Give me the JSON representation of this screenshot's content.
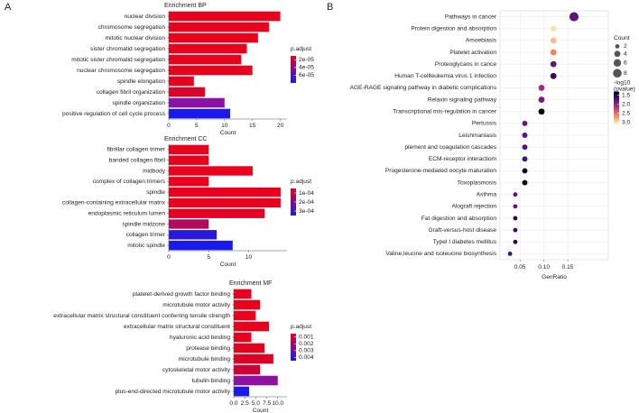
{
  "panels": [
    "A",
    "B"
  ],
  "chart_data": [
    {
      "type": "bar",
      "title": "Enrichment BP",
      "categories": [
        "nuclear division",
        "chromosome segregation",
        "mitotic nuclear division",
        "sister chromatid segregation",
        "mitotic sister chromatid segregation",
        "nuclear chromosome segregation",
        "spindle elongation",
        "collagen fibril organization",
        "spindle organization",
        "positive regulation of cell cycle process"
      ],
      "values": [
        20,
        18,
        16,
        14,
        13,
        15,
        4.5,
        6.5,
        10,
        11
      ],
      "colors": [
        "#e8001c",
        "#e8001c",
        "#e8001c",
        "#e8001c",
        "#e8001c",
        "#e8001c",
        "#e6001e",
        "#d8042e",
        "#8a12a4",
        "#1a1aef"
      ],
      "xlabel": "Count",
      "xlim": [
        0,
        21.2
      ],
      "xticks": [
        0,
        5,
        10,
        15,
        20
      ],
      "legend_title": "p.adjust",
      "clim": [
        1e-05,
        8e-05
      ],
      "cticks": [
        {
          "value": 2e-05,
          "label": "2e-05"
        },
        {
          "value": 4e-05,
          "label": "4e-05"
        },
        {
          "value": 6e-05,
          "label": "6e-05"
        }
      ],
      "colorbar_colors": [
        "#e8001c",
        "#1a1aef"
      ]
    },
    {
      "type": "bar",
      "title": "Enrichment CC",
      "categories": [
        "fibrillar collagen trimer",
        "banded collagen fibril",
        "midbody",
        "complex of collagen trimers",
        "spindle",
        "collagen-containing extracellular matrix",
        "endoplasmic reticulum lumen",
        "spindle midzone",
        "collagen trimer",
        "mitotic spindle"
      ],
      "values": [
        5,
        5,
        10.5,
        5,
        14,
        14,
        12,
        5,
        6,
        8
      ],
      "colors": [
        "#e8001c",
        "#e8001c",
        "#e8001c",
        "#e8001c",
        "#e8001c",
        "#e8001c",
        "#e4001f",
        "#b40a5e",
        "#2a18de",
        "#1a1aef"
      ],
      "xlabel": "Count",
      "xlim": [
        0,
        14.8
      ],
      "xticks": [
        0,
        5,
        10
      ],
      "legend_title": "p.adjust",
      "clim": [
        5e-05,
        0.00035
      ],
      "cticks": [
        {
          "value": 0.0001,
          "label": "1e-04"
        },
        {
          "value": 0.0002,
          "label": "2e-04"
        },
        {
          "value": 0.0003,
          "label": "3e-04"
        }
      ],
      "colorbar_colors": [
        "#e8001c",
        "#1a1aef"
      ]
    },
    {
      "type": "bar",
      "title": "Enrichment MF",
      "categories": [
        "platelet-derived growth factor binding",
        "microtubule motor activity",
        "extracellular matrix structural constituent conferring tensile strength",
        "extracellular matrix structural constituent",
        "hyaluronic acid binding",
        "protease binding",
        "microtubule binding",
        "cytoskeletal motor activity",
        "tubulin binding",
        "plus-end-directed microtubule motor activity"
      ],
      "values": [
        4,
        6,
        5,
        8,
        4,
        7,
        9,
        6,
        10,
        3.5
      ],
      "colors": [
        "#e8001c",
        "#e8001c",
        "#e8001c",
        "#e8001c",
        "#e6001e",
        "#e2001f",
        "#dc0226",
        "#cc0436",
        "#9010a0",
        "#1a1aef"
      ],
      "xlabel": "Count",
      "xlim": [
        0,
        12.1
      ],
      "xticks": [
        {
          "value": 0,
          "label": "0.0"
        },
        {
          "value": 2.5,
          "label": "2.5"
        },
        {
          "value": 5,
          "label": "5.0"
        },
        {
          "value": 7.5,
          "label": "7.5"
        },
        {
          "value": 10,
          "label": "10.0"
        }
      ],
      "legend_title": "p.adjust",
      "clim": [
        0.0005,
        0.0045
      ],
      "cticks": [
        0.001,
        0.002,
        0.003,
        0.004
      ],
      "colorbar_colors": [
        "#e8001c",
        "#1a1aef"
      ]
    },
    {
      "type": "dot",
      "categories": [
        "Pathways in cancer",
        "Protein digestion and absorption",
        "Amoebiasis",
        "Platelet activation",
        "Proteoglycans in cance",
        "Human T-cellleukemia virus 1 infection",
        "AGE-RAGE signaling pathway in diabetic complications",
        "Relaxin signaling pathway",
        "Transcriptional mis-regulation in cancer",
        "Pertussis",
        "Leishmaniasis",
        "plement and coagulation cascades",
        "ECM-receptor interactiom",
        "Progesterone-mediated oocyte maturation",
        "Toxoplasmosis",
        "Asthma",
        "Alograft rejection",
        "Fat digestion and absorption",
        "Graft-versus-host disease",
        "Typel I diabetes mellitus",
        "Valine,leucine and isoleucine biosynthesis"
      ],
      "x": [
        0.163,
        0.12,
        0.12,
        0.12,
        0.12,
        0.12,
        0.095,
        0.095,
        0.095,
        0.06,
        0.06,
        0.06,
        0.06,
        0.06,
        0.06,
        0.04,
        0.04,
        0.04,
        0.04,
        0.04,
        0.029
      ],
      "sizes": [
        9,
        4,
        4,
        4,
        4,
        4,
        4,
        4,
        4,
        3,
        3,
        3,
        3,
        3,
        3,
        2,
        2,
        2,
        2,
        2,
        2
      ],
      "color_values": [
        1.8,
        3.0,
        2.85,
        2.6,
        1.8,
        1.6,
        2.1,
        1.9,
        1.3,
        1.85,
        1.8,
        1.75,
        1.7,
        1.4,
        1.35,
        1.8,
        1.8,
        1.5,
        1.6,
        1.55,
        1.7
      ],
      "xlabel": "GenRatio",
      "xlim": [
        0.008,
        0.235
      ],
      "xticks": [
        0.05,
        {
          "value": 0.1,
          "label": "0.10"
        },
        0.15
      ],
      "grid": true,
      "size_legend_title": "Count",
      "size_ticks": [
        2,
        4,
        6,
        8
      ],
      "color_legend_title": [
        "-log10",
        "(pvalue)"
      ],
      "clim": [
        1.3,
        3.1
      ],
      "cticks": [
        1.5,
        {
          "value": 2,
          "label": "2.0"
        },
        2.5,
        {
          "value": 3,
          "label": "3.0"
        }
      ],
      "colormap": [
        "#000004",
        "#51127c",
        "#b73779",
        "#fc8961",
        "#fcfdbf"
      ]
    }
  ]
}
